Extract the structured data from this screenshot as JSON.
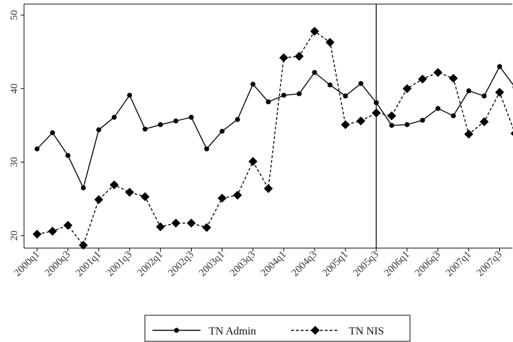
{
  "chart_data": {
    "type": "line",
    "categories": [
      "2000q1",
      "2000q2",
      "2000q3",
      "2000q4",
      "2001q1",
      "2001q2",
      "2001q3",
      "2001q4",
      "2002q1",
      "2002q2",
      "2002q3",
      "2002q4",
      "2003q1",
      "2003q2",
      "2003q3",
      "2003q4",
      "2004q1",
      "2004q2",
      "2004q3",
      "2004q4",
      "2005q1",
      "2005q2",
      "2005q3",
      "2005q4",
      "2006q1",
      "2006q2",
      "2006q3",
      "2006q4",
      "2007q1",
      "2007q2",
      "2007q3",
      "2007q4"
    ],
    "x_tick_labels": [
      "2000q1",
      "2000q3",
      "2001q1",
      "2001q3",
      "2002q1",
      "2002q3",
      "2003q1",
      "2003q3",
      "2004q1",
      "2004q3",
      "2005q1",
      "2005q3",
      "2006q1",
      "2006q3",
      "2007q1",
      "2007q3"
    ],
    "series": [
      {
        "name": "TN Admin",
        "style": "solid",
        "marker": "circle",
        "values": [
          31.8,
          34.0,
          30.9,
          26.5,
          34.4,
          36.1,
          39.1,
          34.5,
          35.1,
          35.6,
          36.1,
          31.8,
          34.2,
          35.8,
          40.6,
          38.2,
          39.1,
          39.3,
          42.2,
          40.5,
          39.0,
          40.7,
          38.1,
          35.0,
          35.1,
          35.7,
          37.3,
          36.3,
          39.7,
          39.0,
          43.0,
          40.2
        ]
      },
      {
        "name": "TN NIS",
        "style": "dashed",
        "marker": "diamond",
        "values": [
          20.2,
          20.6,
          21.4,
          18.7,
          24.9,
          26.9,
          25.9,
          25.3,
          21.2,
          21.7,
          21.7,
          21.1,
          25.1,
          25.5,
          30.1,
          26.4,
          44.2,
          44.4,
          47.8,
          46.3,
          35.1,
          35.6,
          36.7,
          36.3,
          40.0,
          41.3,
          42.2,
          41.4,
          33.8,
          35.5,
          39.5,
          33.9
        ]
      }
    ],
    "y_ticks": [
      20,
      30,
      40,
      50
    ],
    "ylim": [
      18.3,
      51.5
    ],
    "vertical_line_at": "2005q3",
    "legend_position": "bottom",
    "grid": false
  }
}
